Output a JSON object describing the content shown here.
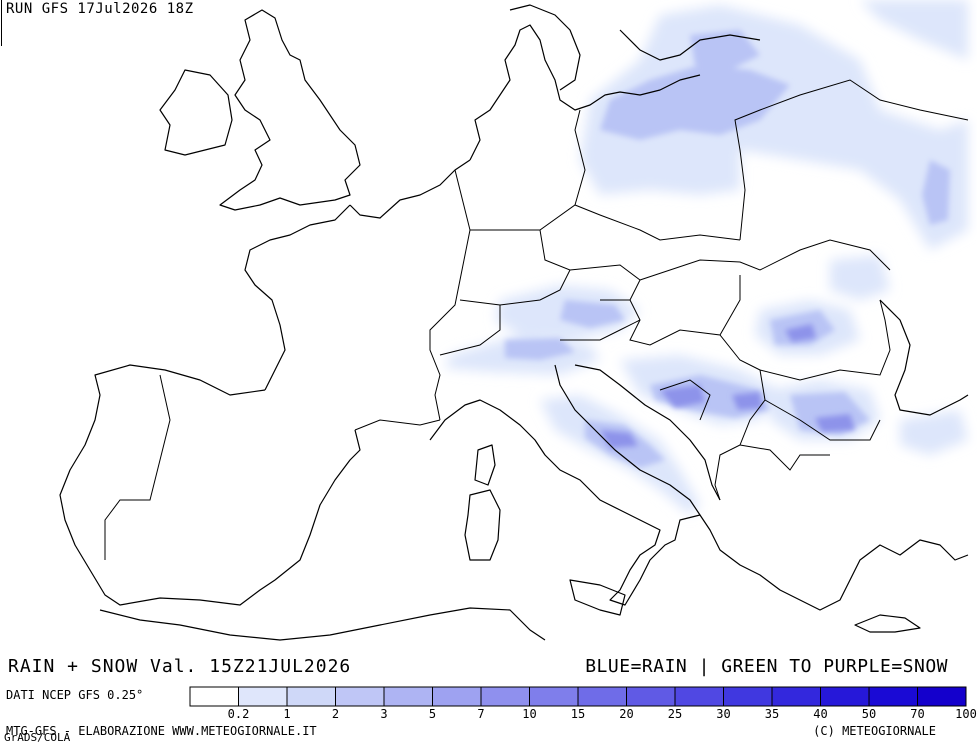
{
  "header": {
    "run_title": "RUN GFS 17Jul2026 18Z"
  },
  "footer": {
    "product_title": "RAIN + SNOW Val. 15Z21JUL2026",
    "color_legend_desc": "BLUE=RAIN | GREEN TO PURPLE=SNOW",
    "source": "DATI NCEP GFS 0.25°",
    "credit_left": "MTG-GFS - ELABORAZIONE WWW.METEOGIORNALE.IT",
    "credit_grads": "GrADS/COLA",
    "copyright": "(C) METEOGIORNALE"
  },
  "legend": {
    "labels": [
      "0.2",
      "1",
      "2",
      "3",
      "5",
      "7",
      "10",
      "15",
      "20",
      "25",
      "30",
      "35",
      "40",
      "50",
      "70",
      "100"
    ],
    "colors": [
      "#ffffff",
      "#dfe6fb",
      "#cfd8f8",
      "#bfc6f6",
      "#aeb4f3",
      "#9ea2f1",
      "#8f90ee",
      "#7f7eeb",
      "#6f6ce8",
      "#605ae5",
      "#5048e3",
      "#4038e0",
      "#3328dd",
      "#2618d9",
      "#1a0ad5",
      "#1400cc"
    ]
  },
  "colors": {
    "precip_light": "#dde6fb",
    "precip_mid": "#b9c4f5",
    "precip_dark": "#8d93ea",
    "border": "#000000"
  }
}
